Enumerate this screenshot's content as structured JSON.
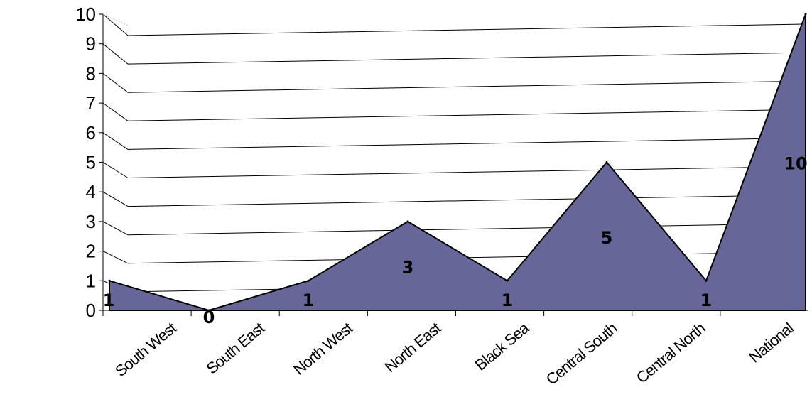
{
  "chart_data": {
    "type": "area",
    "categories": [
      "South West",
      "South East",
      "North West",
      "North East",
      "Black Sea",
      "Central South",
      "Central North",
      "National"
    ],
    "values": [
      1,
      0,
      1,
      3,
      1,
      5,
      1,
      10
    ],
    "data_labels": [
      "1",
      "0",
      "1",
      "3",
      "1",
      "5",
      "1",
      "10"
    ],
    "y_ticks": [
      "0",
      "1",
      "2",
      "3",
      "4",
      "5",
      "6",
      "7",
      "8",
      "9",
      "10"
    ],
    "ylim": [
      0,
      10
    ],
    "grid": true,
    "legend": "none",
    "title": "",
    "xlabel": "",
    "ylabel": "",
    "colors": {
      "area": "#666699",
      "outline": "#000000",
      "grid": "#000000"
    }
  }
}
